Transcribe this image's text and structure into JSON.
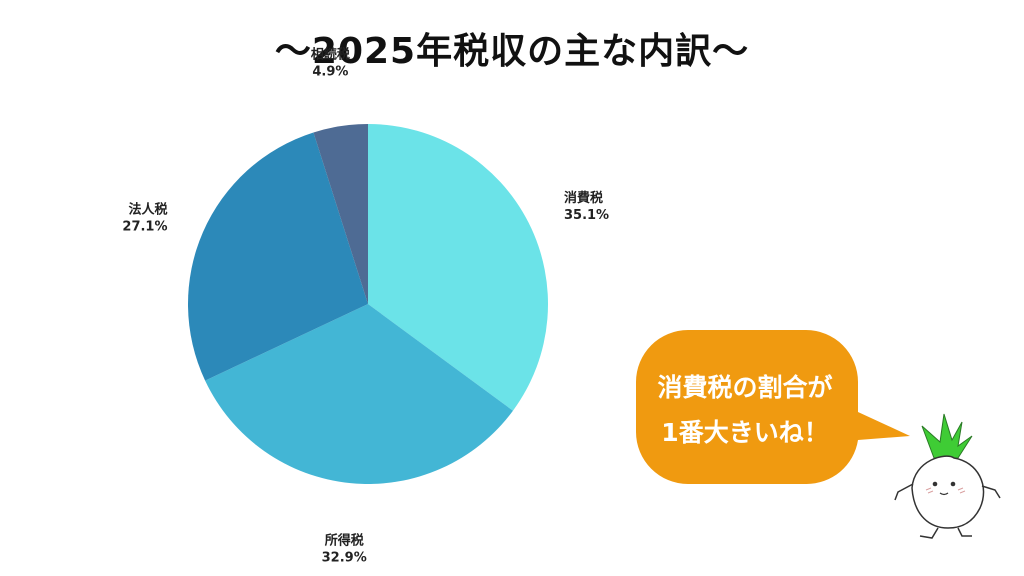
{
  "chart_data": {
    "type": "pie",
    "title": "～2025年税収の主な内訳～",
    "slices": [
      {
        "label": "消費税",
        "value": 35.1,
        "value_label": "35.1%",
        "color": "#6be3e8"
      },
      {
        "label": "所得税",
        "value": 32.9,
        "value_label": "32.9%",
        "color": "#43b6d5"
      },
      {
        "label": "法人税",
        "value": 27.1,
        "value_label": "27.1%",
        "color": "#2c89b9"
      },
      {
        "label": "相続税",
        "value": 4.9,
        "value_label": "4.9%",
        "color": "#4e6b94"
      }
    ]
  },
  "callout": {
    "line1": "消費税の割合が",
    "line2": "1番大きいね！",
    "color": "#f09a10"
  },
  "mascot": {
    "icon": "turnip-mascot-icon",
    "leaf_color": "#3fcc35"
  }
}
